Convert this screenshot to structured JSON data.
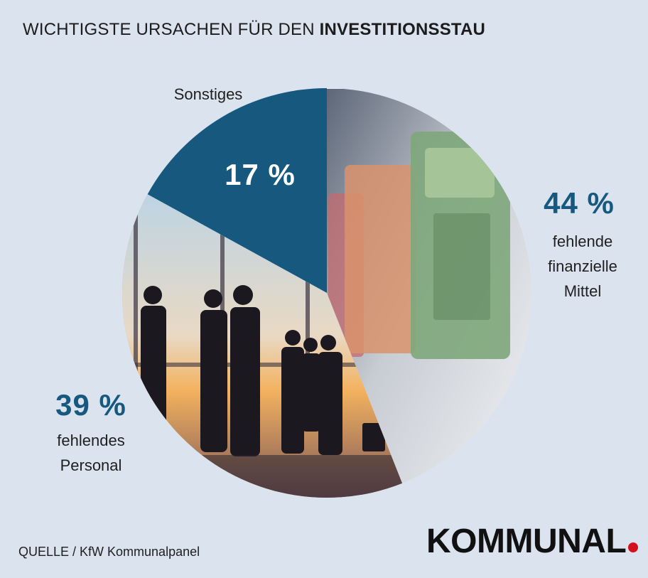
{
  "header": {
    "title_regular": "WICHTIGSTE URSACHEN FÜR DEN ",
    "title_bold": "INVESTITIONSSTAU"
  },
  "chart_data": {
    "type": "pie",
    "title": "WICHTIGSTE URSACHEN FÜR DEN INVESTITIONSSTAU",
    "slices": [
      {
        "label": "fehlende finanzielle Mittel",
        "value": 44,
        "display": "44 %",
        "color": "#eceff3"
      },
      {
        "label": "fehlendes Personal",
        "value": 39,
        "display": "39 %",
        "color": "#c9a46e"
      },
      {
        "label": "Sonstiges",
        "value": 17,
        "display": "17 %",
        "color": "#16587e"
      }
    ]
  },
  "labels": {
    "finanzielle_pct": "44 %",
    "finanzielle_line1": "fehlende",
    "finanzielle_line2": "finanzielle",
    "finanzielle_line3": "Mittel",
    "personal_pct": "39 %",
    "personal_line1": "fehlendes",
    "personal_line2": "Personal",
    "sonstiges_pct": "17 %",
    "sonstiges_label": "Sonstiges"
  },
  "footer": {
    "source": "QUELLE / KfW Kommunalpanel",
    "logo": "KOMMUNAL"
  },
  "colors": {
    "accent": "#16587e",
    "logo_dot": "#d4121d",
    "background": "#dbe3ef"
  }
}
